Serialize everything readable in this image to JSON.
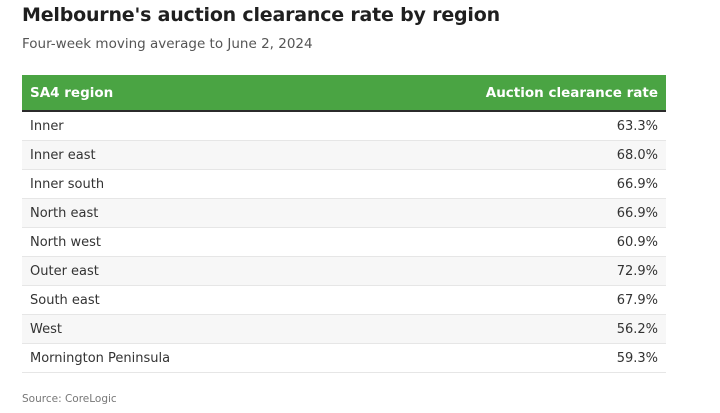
{
  "header": {
    "title": "Melbourne's auction clearance rate by region",
    "subtitle": "Four-week moving average to June 2, 2024"
  },
  "colors": {
    "header_background": "#4aa443",
    "header_text": "#ffffff"
  },
  "chart_data": {
    "type": "table",
    "columns": [
      "SA4 region",
      "Auction clearance rate"
    ],
    "rows": [
      {
        "region": "Inner",
        "rate": "63.3%"
      },
      {
        "region": "Inner east",
        "rate": "68.0%"
      },
      {
        "region": "Inner south",
        "rate": "66.9%"
      },
      {
        "region": "North east",
        "rate": "66.9%"
      },
      {
        "region": "North west",
        "rate": "60.9%"
      },
      {
        "region": "Outer east",
        "rate": "72.9%"
      },
      {
        "region": "South east",
        "rate": "67.9%"
      },
      {
        "region": "West",
        "rate": "56.2%"
      },
      {
        "region": "Mornington Peninsula",
        "rate": "59.3%"
      }
    ]
  },
  "footer": {
    "source": "Source: CoreLogic"
  }
}
